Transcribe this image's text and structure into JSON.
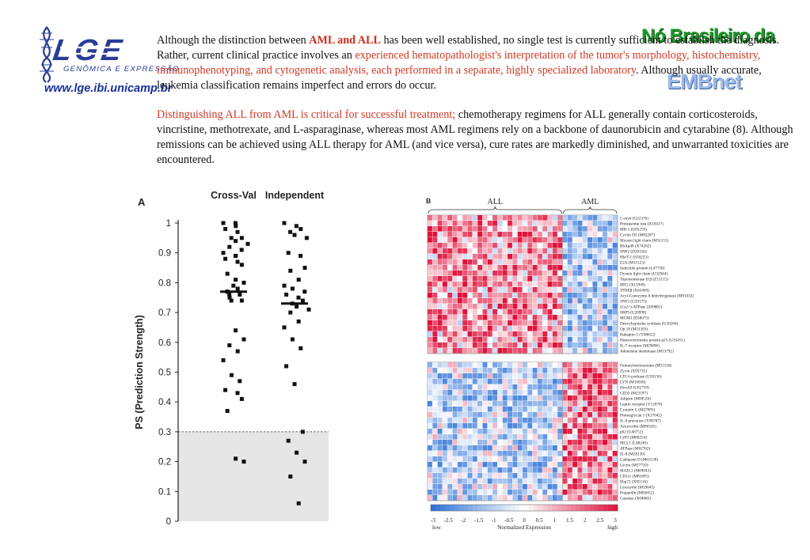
{
  "header": {
    "logo_text": "LGE",
    "logo_subtitle": "GENÔMICA E EXPRESSÃO",
    "url": "www.lge.ibi.unicamp.br",
    "partner_logo_1": "Nó Brasileiro da",
    "partner_logo_2": "EMBnet"
  },
  "para1": {
    "t1": "Although the distinction between ",
    "t2": "AML and ALL",
    "t3": " has been well established, no single test is currently sufficient to establish the diagnosis. Rather, current clinical practice involves an ",
    "t4": "experienced hematopathologist's interpretation of the tumor's morphology, histochemistry, immunophenotyping, and cytogenetic analysis, each performed in a separate, highly specialized laboratory",
    "t5": ". Although usually accurate, leukemia classification remains imperfect and errors do occur."
  },
  "para2": {
    "t1": "Distinguishing ALL from AML is critical for successful treatment;",
    "t2": " chemotherapy regimens for ALL generally contain corticosteroids, vincristine, methotrexate, and L-asparaginase, whereas most AML regimens rely on a backbone of daunorubicin and cytarabine (8). Although remissions can be achieved using ALL therapy for AML (and vice versa), cure rates are markedly diminished, and unwarranted toxicities are encountered."
  },
  "chart_data": [
    {
      "type": "scatter",
      "panel": "A",
      "ylabel": "PS (Prediction Strength)",
      "ylim": [
        0,
        1
      ],
      "yticks": [
        "0",
        "0.1",
        "0.2",
        "0.3",
        "0.4",
        "0.5",
        "0.6",
        "0.7",
        "0.8",
        "0.9",
        "1"
      ],
      "threshold": 0.3,
      "grid": false,
      "groups": [
        {
          "name": "Cross-Val",
          "median": 0.77,
          "points": [
            1.0,
            1.0,
            0.99,
            0.98,
            0.97,
            0.95,
            0.95,
            0.94,
            0.93,
            0.92,
            0.91,
            0.9,
            0.89,
            0.89,
            0.88,
            0.87,
            0.86,
            0.83,
            0.81,
            0.8,
            0.79,
            0.78,
            0.77,
            0.77,
            0.76,
            0.76,
            0.75,
            0.74,
            0.74,
            0.64,
            0.61,
            0.59,
            0.57,
            0.54,
            0.49,
            0.47,
            0.44,
            0.43,
            0.41,
            0.37,
            0.21,
            0.2
          ]
        },
        {
          "name": "Independent",
          "median": 0.73,
          "points": [
            1.0,
            0.99,
            0.98,
            0.97,
            0.96,
            0.95,
            0.9,
            0.89,
            0.85,
            0.84,
            0.81,
            0.79,
            0.78,
            0.77,
            0.76,
            0.75,
            0.74,
            0.73,
            0.72,
            0.71,
            0.7,
            0.67,
            0.65,
            0.61,
            0.58,
            0.52,
            0.46,
            0.3,
            0.27,
            0.23,
            0.2,
            0.15,
            0.06
          ]
        }
      ]
    },
    {
      "type": "heatmap",
      "panel": "B",
      "columns_groups": [
        "ALL",
        "AML"
      ],
      "all_columns": 27,
      "aml_columns": 11,
      "colorbar": {
        "ticks": [
          "-3",
          "-2.5",
          "-2",
          "-1.5",
          "-1",
          "-0.5",
          "0",
          "0.5",
          "1",
          "1.5",
          "2",
          "2.5",
          "3"
        ],
        "low_label": "low",
        "mid_label": "Normalized Expression",
        "high_label": "high"
      },
      "block_all_high_genes": [
        "C-myb (U22376)",
        "Proteasome iota (X59417)",
        "MB-1 (U05259)",
        "Cyclin D3 (M92287)",
        "Myosin light chain (M31211)",
        "RbAp48 (X74262)",
        "SNF2 (D26156)",
        "HkrT-1 (S50223)",
        "E2A (M31523)",
        "Inducible protein (L47738)",
        "Dynein light chain (U32944)",
        "Topoisomerase II β (Z15115)",
        "IRF2 (X15949)",
        "TFIIEβ (X63469)",
        "Acyl-Coenzyme A dehydrogenase (M91432)",
        "SNF2 (U29175)",
        "(Ca2+)-ATPase (Z69881)",
        "SRP9 (U20998)",
        "MCM3 (D38073)",
        "Deoxyhypusine synthase (U26266)",
        "Op 18 (M31303)",
        "Rabaptin-5 (Y08612)",
        "Heterochromatin protein p25 (U35451)",
        "IL-7 receptor (M29696)",
        "Adenosine deaminase (M13792)"
      ],
      "block_aml_high_genes": [
        "Fumarylacetoacetate (M55150)",
        "Zyxin (X95735)",
        "LTC4 synthase (U50136)",
        "LYN (M16038)",
        "HoxA9 (U82759)",
        "CD33 (M23197)",
        "Adipsin (M84526)",
        "Leptin receptor (Y12670)",
        "Cystatin C (M27891)",
        "Proteoglycan 1 (X17042)",
        "IL-8 precursor (Y00787)",
        "Azurocidin (M96326)",
        "p62 (U46751)",
        "CyP3 (M80254)",
        "MCL1 (L08246)",
        "ATPase (M62762)",
        "IL-8 (M28130)",
        "Cathepsin D (M63138)",
        "Lectin (M57710)",
        "MAD-3 (M69043)",
        "CD11c (M81695)",
        "Ebp72 (X85116)",
        "Lysozyme (M19045)",
        "Properdin (M83652)",
        "Catalase (X04085)"
      ],
      "colors": {
        "low": "#2a6fd6",
        "mid": "#ffffff",
        "high": "#e0103a"
      }
    }
  ]
}
